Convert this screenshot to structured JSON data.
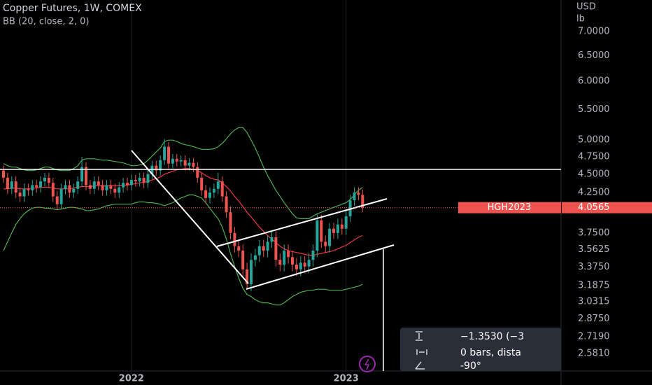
{
  "chart_data": {
    "type": "candlestick",
    "title": "Copper Futures, 1W, COMEX",
    "indicator": "BB (20, close, 2, 0)",
    "currency": "USD",
    "unit": "lb",
    "log_scale": true,
    "up_color": "#26a69a",
    "down_color": "#ef5350",
    "band_color": "#4caf50",
    "basis_color": "#f23645",
    "categories": [
      null,
      null,
      null,
      null,
      null,
      null,
      null,
      null,
      null,
      null,
      null,
      null,
      null,
      null,
      null,
      null,
      null,
      null,
      null,
      null,
      null,
      null,
      null,
      null,
      null,
      null,
      null,
      null,
      null,
      null,
      null,
      "2022",
      null,
      null,
      null,
      null,
      null,
      null,
      null,
      null,
      null,
      null,
      null,
      null,
      null,
      null,
      null,
      null,
      null,
      null,
      null,
      null,
      null,
      null,
      null,
      null,
      null,
      null,
      null,
      null,
      null,
      null,
      null,
      null,
      null,
      null,
      null,
      null,
      null,
      null,
      null,
      null,
      null,
      null,
      null,
      null,
      null,
      null,
      null,
      null,
      null,
      null,
      null,
      "2023",
      null,
      null,
      null,
      null
    ],
    "open": [
      4.55,
      4.45,
      4.3,
      4.4,
      4.25,
      4.2,
      4.3,
      4.28,
      4.35,
      4.32,
      4.4,
      4.45,
      4.38,
      4.2,
      4.1,
      4.3,
      4.35,
      4.25,
      4.3,
      4.4,
      4.6,
      4.35,
      4.3,
      4.4,
      4.35,
      4.28,
      4.35,
      4.3,
      4.25,
      4.32,
      4.38,
      4.35,
      4.42,
      4.4,
      4.45,
      4.38,
      4.5,
      4.62,
      4.55,
      4.7,
      4.9,
      4.65,
      4.72,
      4.68,
      4.7,
      4.62,
      4.66,
      4.6,
      4.45,
      4.28,
      4.18,
      4.25,
      4.3,
      4.4,
      4.2,
      4.0,
      3.75,
      3.6,
      3.55,
      3.35,
      3.2,
      3.45,
      3.5,
      3.6,
      3.55,
      3.65,
      3.7,
      3.45,
      3.4,
      3.55,
      3.48,
      3.4,
      3.35,
      3.42,
      3.38,
      3.45,
      3.55,
      3.9,
      3.65,
      3.6,
      3.8,
      3.75,
      3.85,
      3.8,
      3.95,
      4.15,
      4.25,
      4.22
    ],
    "high": [
      4.62,
      4.52,
      4.47,
      4.47,
      4.32,
      4.37,
      4.37,
      4.42,
      4.42,
      4.47,
      4.52,
      4.52,
      4.45,
      4.27,
      4.37,
      4.42,
      4.42,
      4.37,
      4.47,
      4.75,
      4.67,
      4.42,
      4.47,
      4.47,
      4.42,
      4.42,
      4.42,
      4.37,
      4.39,
      4.45,
      4.45,
      4.49,
      4.49,
      4.52,
      4.52,
      4.57,
      4.69,
      4.69,
      4.77,
      5.02,
      4.97,
      4.79,
      4.79,
      4.77,
      4.77,
      4.73,
      4.73,
      4.67,
      4.52,
      4.35,
      4.32,
      4.37,
      4.52,
      4.47,
      4.27,
      4.07,
      3.82,
      3.67,
      3.62,
      3.42,
      3.52,
      3.57,
      3.67,
      3.67,
      3.72,
      3.77,
      3.77,
      3.52,
      3.62,
      3.62,
      3.55,
      3.47,
      3.49,
      3.49,
      3.52,
      3.62,
      3.97,
      3.97,
      3.72,
      3.87,
      3.87,
      3.92,
      3.92,
      4.02,
      4.22,
      4.32,
      4.32,
      4.29
    ],
    "low": [
      4.38,
      4.23,
      4.23,
      4.18,
      4.13,
      4.13,
      4.21,
      4.21,
      4.25,
      4.25,
      4.33,
      4.31,
      4.13,
      4.03,
      4.03,
      4.23,
      4.18,
      4.18,
      4.23,
      4.33,
      4.28,
      4.23,
      4.23,
      4.28,
      4.21,
      4.21,
      4.23,
      4.18,
      4.18,
      4.25,
      4.28,
      4.28,
      4.33,
      4.33,
      4.31,
      4.31,
      4.43,
      4.48,
      4.48,
      4.63,
      4.58,
      4.58,
      4.61,
      4.61,
      4.55,
      4.55,
      4.53,
      4.38,
      4.21,
      4.11,
      4.11,
      4.18,
      4.23,
      4.13,
      3.93,
      3.68,
      3.53,
      3.48,
      3.28,
      3.15,
      3.13,
      3.38,
      3.43,
      3.48,
      3.48,
      3.58,
      3.38,
      3.33,
      3.33,
      3.41,
      3.33,
      3.28,
      3.28,
      3.31,
      3.31,
      3.38,
      3.48,
      3.58,
      3.53,
      3.53,
      3.68,
      3.68,
      3.73,
      3.73,
      3.88,
      4.08,
      4.15,
      4.0
    ],
    "close": [
      4.45,
      4.3,
      4.4,
      4.25,
      4.2,
      4.3,
      4.28,
      4.35,
      4.32,
      4.4,
      4.45,
      4.38,
      4.2,
      4.1,
      4.3,
      4.35,
      4.25,
      4.3,
      4.4,
      4.6,
      4.35,
      4.3,
      4.4,
      4.35,
      4.28,
      4.35,
      4.3,
      4.25,
      4.32,
      4.38,
      4.35,
      4.42,
      4.4,
      4.45,
      4.38,
      4.5,
      4.62,
      4.55,
      4.7,
      4.9,
      4.65,
      4.72,
      4.68,
      4.7,
      4.62,
      4.66,
      4.6,
      4.45,
      4.28,
      4.18,
      4.25,
      4.3,
      4.4,
      4.2,
      4.0,
      3.75,
      3.6,
      3.55,
      3.35,
      3.2,
      3.45,
      3.5,
      3.6,
      3.55,
      3.65,
      3.7,
      3.45,
      3.4,
      3.55,
      3.48,
      3.4,
      3.35,
      3.42,
      3.38,
      3.45,
      3.55,
      3.9,
      3.65,
      3.6,
      3.8,
      3.75,
      3.85,
      3.8,
      3.95,
      4.15,
      4.25,
      4.22,
      4.0565
    ],
    "bb_basis": [
      4.3,
      4.3,
      4.31,
      4.31,
      4.3,
      4.3,
      4.3,
      4.31,
      4.31,
      4.32,
      4.32,
      4.32,
      4.31,
      4.3,
      4.3,
      4.3,
      4.3,
      4.31,
      4.32,
      4.33,
      4.33,
      4.33,
      4.34,
      4.34,
      4.34,
      4.34,
      4.34,
      4.34,
      4.34,
      4.35,
      4.35,
      4.36,
      4.37,
      4.38,
      4.39,
      4.4,
      4.42,
      4.44,
      4.46,
      4.5,
      4.52,
      4.54,
      4.56,
      4.57,
      4.58,
      4.58,
      4.57,
      4.55,
      4.52,
      4.48,
      4.45,
      4.43,
      4.42,
      4.38,
      4.33,
      4.27,
      4.2,
      4.14,
      4.07,
      4.0,
      3.94,
      3.88,
      3.82,
      3.77,
      3.72,
      3.68,
      3.64,
      3.6,
      3.57,
      3.55,
      3.54,
      3.53,
      3.52,
      3.51,
      3.5,
      3.5,
      3.51,
      3.52,
      3.53,
      3.54,
      3.55,
      3.57,
      3.59,
      3.61,
      3.64,
      3.67,
      3.7,
      3.72
    ],
    "bb_upper": [
      4.65,
      4.62,
      4.6,
      4.6,
      4.58,
      4.56,
      4.55,
      4.55,
      4.56,
      4.58,
      4.6,
      4.6,
      4.58,
      4.56,
      4.55,
      4.55,
      4.55,
      4.58,
      4.62,
      4.7,
      4.72,
      4.72,
      4.72,
      4.71,
      4.7,
      4.7,
      4.69,
      4.68,
      4.67,
      4.66,
      4.64,
      4.62,
      4.62,
      4.63,
      4.65,
      4.7,
      4.76,
      4.82,
      4.88,
      4.98,
      5.0,
      5.0,
      4.98,
      4.95,
      4.93,
      4.92,
      4.9,
      4.88,
      4.86,
      4.86,
      4.86,
      4.87,
      4.9,
      4.95,
      5.02,
      5.1,
      5.16,
      5.2,
      5.2,
      5.12,
      5.0,
      4.88,
      4.74,
      4.6,
      4.48,
      4.38,
      4.28,
      4.2,
      4.12,
      4.05,
      3.98,
      3.93,
      3.92,
      3.92,
      3.92,
      3.95,
      3.98,
      4.0,
      4.02,
      4.04,
      4.06,
      4.08,
      4.1,
      4.12,
      4.16,
      4.22,
      4.28,
      4.32
    ],
    "bb_lower": [
      3.55,
      3.65,
      3.75,
      3.85,
      3.92,
      3.98,
      4.02,
      4.05,
      4.06,
      4.06,
      4.05,
      4.05,
      4.04,
      4.03,
      4.04,
      4.05,
      4.06,
      4.06,
      4.05,
      4.04,
      4.02,
      4.02,
      4.03,
      4.04,
      4.06,
      4.08,
      4.09,
      4.1,
      4.1,
      4.1,
      4.1,
      4.1,
      4.12,
      4.13,
      4.13,
      4.12,
      4.12,
      4.11,
      4.1,
      4.08,
      4.1,
      4.12,
      4.15,
      4.18,
      4.2,
      4.22,
      4.22,
      4.2,
      4.18,
      4.12,
      4.05,
      3.98,
      3.92,
      3.82,
      3.68,
      3.52,
      3.38,
      3.26,
      3.16,
      3.1,
      3.08,
      3.05,
      3.03,
      3.02,
      3.02,
      3.01,
      3.0,
      3.0,
      3.02,
      3.05,
      3.08,
      3.1,
      3.12,
      3.13,
      3.14,
      3.14,
      3.15,
      3.15,
      3.15,
      3.14,
      3.14,
      3.14,
      3.14,
      3.15,
      3.16,
      3.17,
      3.18,
      3.2
    ],
    "ylim": [
      2.445,
      7.72
    ],
    "yticks": [
      {
        "value": 7,
        "label": "7.0000"
      },
      {
        "value": 6.5,
        "label": "6.5000"
      },
      {
        "value": 6,
        "label": "6.0000"
      },
      {
        "value": 5.5,
        "label": "5.5000"
      },
      {
        "value": 5,
        "label": "5.0000"
      },
      {
        "value": 4.75,
        "label": "4.7500"
      },
      {
        "value": 4.5,
        "label": "4.5000"
      },
      {
        "value": 4.25,
        "label": "4.2500"
      },
      {
        "value": 3.75,
        "label": "3.7500"
      },
      3.5625,
      {
        "value": 3.375,
        "label": "3.3750"
      },
      3.1875,
      3.0315,
      {
        "value": 2.875,
        "label": "2.8750"
      },
      {
        "value": 2.719,
        "label": "2.7190"
      },
      {
        "value": 2.581,
        "label": "2.5810"
      }
    ],
    "symbol": "HGH2023",
    "last_price": 4.0565
  },
  "measure_tool": {
    "price_change": "−1.3530 (−3",
    "bars": "0 bars, dista",
    "angle": "-90°"
  }
}
